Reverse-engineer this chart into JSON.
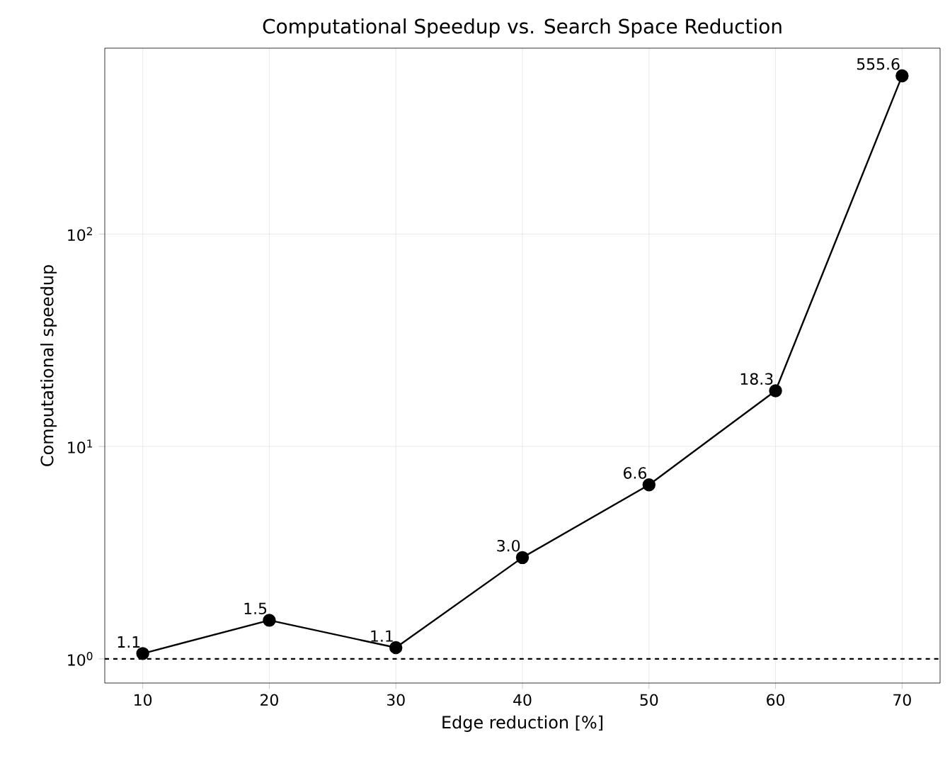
{
  "chart_data": {
    "type": "line",
    "title": "Computational Speedup vs. Search Space Reduction",
    "xlabel": "Edge reduction [%]",
    "ylabel": "Computational speedup",
    "x": [
      10,
      20,
      30,
      40,
      50,
      60,
      70
    ],
    "series": [
      {
        "color": "#000000",
        "values": [
          1.06,
          1.52,
          1.13,
          3.0,
          6.6,
          18.3,
          555.6
        ],
        "value_labels": [
          "1.1",
          "1.5",
          "1.1",
          "3.0",
          "6.6",
          "18.3",
          "555.6"
        ]
      }
    ],
    "xlim": [
      7,
      73
    ],
    "ylim": [
      0.77,
      750
    ],
    "xticks": [
      10,
      20,
      30,
      40,
      50,
      60,
      70
    ],
    "yticks": [
      {
        "value": 1,
        "label": "10$^{0}$"
      },
      {
        "value": 10,
        "label": "10$^{1}$"
      },
      {
        "value": 100,
        "label": "10$^{2}$"
      }
    ],
    "log": "y",
    "grid": true,
    "marker": "circle",
    "line_style": "solid",
    "ref_lines": [
      {
        "axis": "y",
        "value": 1,
        "color": "#000000",
        "line_style": "dashed"
      }
    ]
  }
}
